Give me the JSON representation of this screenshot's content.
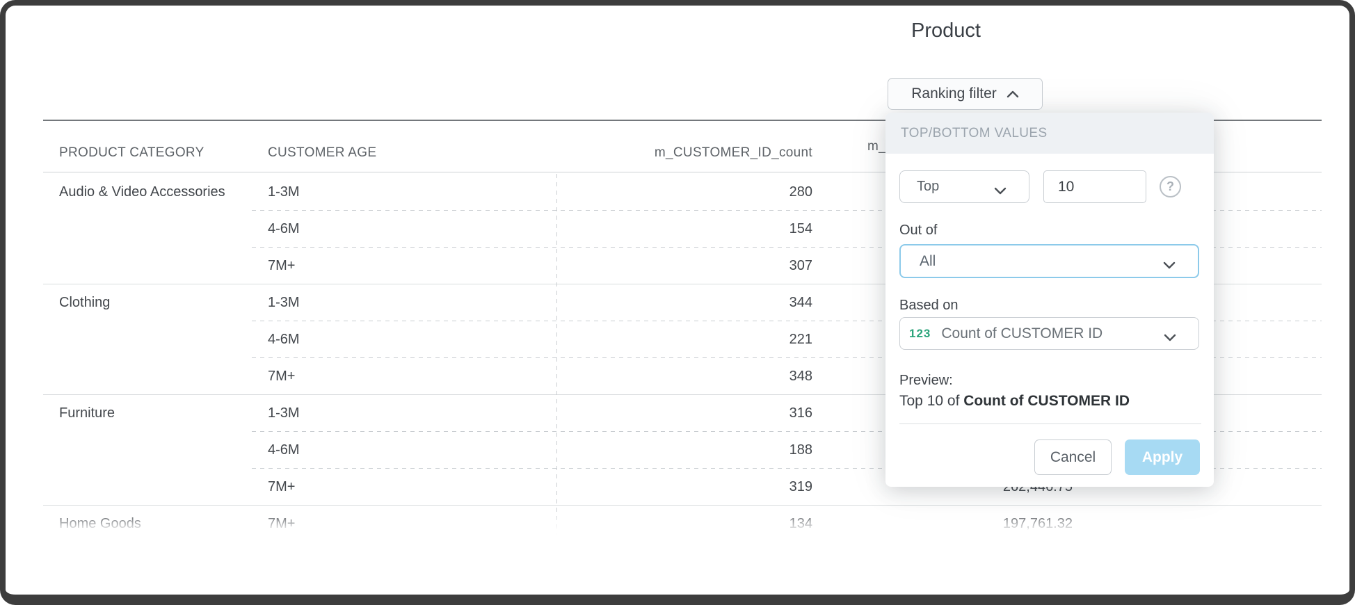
{
  "page": {
    "title": "Product"
  },
  "ranking_button": {
    "label": "Ranking filter",
    "icon": "chevron-up"
  },
  "panel": {
    "header": "TOP/BOTTOM VALUES",
    "mode_select": {
      "value": "Top"
    },
    "count_input": {
      "value": "10"
    },
    "help_icon": "?",
    "out_of": {
      "label": "Out of",
      "value": "All"
    },
    "based_on": {
      "label": "Based on",
      "badge": "123",
      "value": "Count of CUSTOMER ID"
    },
    "preview": {
      "label": "Preview:",
      "prefix": "Top 10 of ",
      "bold": "Count of CUSTOMER ID"
    },
    "buttons": {
      "cancel": "Cancel",
      "apply": "Apply"
    },
    "colors": {
      "apply_bg": "#A7DAF3",
      "focused_select_border": "#8CCAEA",
      "numeric_badge_green": "#2BA47B",
      "header_band": "#EEF1F4",
      "header_text": "#9BA4AD"
    }
  },
  "table": {
    "columns": [
      "PRODUCT CATEGORY",
      "CUSTOMER AGE",
      "m_CUSTOMER_ID_count",
      "m_"
    ],
    "groups": [
      {
        "category": "Audio & Video Accessories",
        "rows": [
          {
            "age": "1-3M",
            "count": "280",
            "sum": ""
          },
          {
            "age": "4-6M",
            "count": "154",
            "sum": ""
          },
          {
            "age": "7M+",
            "count": "307",
            "sum": ""
          }
        ]
      },
      {
        "category": "Clothing",
        "rows": [
          {
            "age": "1-3M",
            "count": "344",
            "sum": ""
          },
          {
            "age": "4-6M",
            "count": "221",
            "sum": ""
          },
          {
            "age": "7M+",
            "count": "348",
            "sum": ""
          }
        ]
      },
      {
        "category": "Furniture",
        "rows": [
          {
            "age": "1-3M",
            "count": "316",
            "sum": ""
          },
          {
            "age": "4-6M",
            "count": "188",
            "sum": ""
          },
          {
            "age": "7M+",
            "count": "319",
            "sum": "262,446.75"
          }
        ]
      },
      {
        "category": "Home Goods",
        "rows": [
          {
            "age": "7M+",
            "count": "134",
            "sum": "197,761.32"
          }
        ]
      }
    ]
  }
}
